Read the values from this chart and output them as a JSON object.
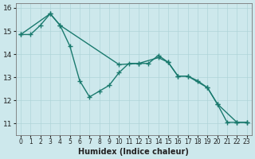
{
  "xlabel": "Humidex (Indice chaleur)",
  "background_color": "#cde8ec",
  "line_color": "#1a7a6e",
  "grid_color": "#afd4d8",
  "xlim": [
    -0.5,
    23.5
  ],
  "ylim": [
    10.5,
    16.2
  ],
  "yticks": [
    11,
    12,
    13,
    14,
    15,
    16
  ],
  "xticks": [
    0,
    1,
    2,
    3,
    4,
    5,
    6,
    7,
    8,
    9,
    10,
    11,
    12,
    13,
    14,
    15,
    16,
    17,
    18,
    19,
    20,
    21,
    22,
    23
  ],
  "series1_x": [
    0,
    1,
    2,
    3,
    4,
    5,
    6,
    7,
    8,
    9,
    10,
    11,
    12,
    13,
    14,
    15,
    16,
    17,
    18,
    19,
    20,
    21,
    22,
    23
  ],
  "series1_y": [
    14.85,
    14.85,
    15.25,
    15.75,
    15.25,
    14.35,
    12.85,
    12.15,
    12.4,
    12.65,
    13.2,
    13.6,
    13.6,
    13.6,
    13.95,
    13.65,
    13.05,
    13.05,
    12.85,
    12.55,
    11.85,
    11.05,
    11.05,
    11.05
  ],
  "series2_x": [
    0,
    3,
    4,
    10,
    12,
    14,
    15,
    16,
    17,
    19,
    20,
    22,
    23
  ],
  "series2_y": [
    14.85,
    15.75,
    15.25,
    13.55,
    13.6,
    13.85,
    13.65,
    13.05,
    13.05,
    12.55,
    11.85,
    11.05,
    11.05
  ],
  "marker": "+",
  "markersize": 4,
  "markeredgewidth": 1.0,
  "linewidth": 1.0
}
